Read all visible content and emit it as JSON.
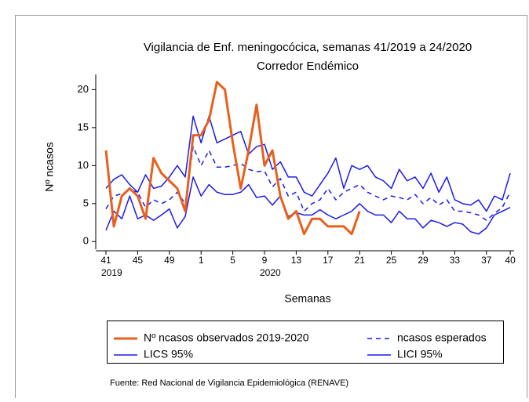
{
  "chart_data": {
    "type": "line",
    "title": "Vigilancia de Enf. meningocócica, semanas 41/2019 a 24/2020",
    "subtitle": "Corredor Endémico",
    "x_label": "Semanas",
    "y_label": "Nº ncasos",
    "source": "Fuente: Red Nacional de Vigilancia Epidemiológica (RENAVE)",
    "categories": [
      "41",
      null,
      null,
      null,
      "45",
      null,
      null,
      null,
      "49",
      null,
      null,
      null,
      "1",
      null,
      null,
      null,
      "5",
      null,
      null,
      null,
      "9",
      null,
      null,
      null,
      "13",
      null,
      null,
      null,
      "17",
      null,
      null,
      null,
      "21",
      null,
      null,
      null,
      "25",
      null,
      null,
      null,
      "29",
      null,
      null,
      null,
      "33",
      null,
      null,
      null,
      "37",
      null,
      null,
      "40"
    ],
    "category_sublabels": [
      "2019",
      null,
      null,
      null,
      null,
      null,
      null,
      null,
      null,
      null,
      null,
      null,
      null,
      null,
      null,
      null,
      null,
      null,
      null,
      null,
      "2020",
      null,
      null,
      null,
      null,
      null,
      null,
      null,
      null,
      null,
      null,
      null,
      null,
      null,
      null,
      null,
      null,
      null,
      null,
      null,
      null,
      null,
      null,
      null,
      null,
      null,
      null,
      null,
      null,
      null,
      null,
      null
    ],
    "ylim": [
      -1,
      22
    ],
    "yticks": [
      0,
      5,
      10,
      15,
      20
    ],
    "series": [
      {
        "name": "Nº ncasos observados 2019-2020",
        "color": "#e8601c",
        "dashed": false,
        "values": [
          12,
          2,
          6,
          7,
          6,
          3,
          11,
          9,
          8,
          7,
          4,
          14,
          14,
          16,
          21,
          20,
          13,
          7,
          12,
          18,
          10,
          12,
          6,
          3,
          4,
          1,
          3,
          3,
          2,
          2,
          2,
          1,
          4,
          null,
          null,
          null,
          null,
          null,
          null,
          null,
          null,
          null,
          null,
          null,
          null,
          null,
          null,
          null,
          null,
          null,
          null,
          null
        ]
      },
      {
        "name": "ncasos esperados",
        "color": "#1a1aee",
        "dashed": true,
        "values": [
          4.3,
          6,
          6.3,
          6.8,
          6.5,
          4.5,
          5.5,
          5,
          5.5,
          6.5,
          5,
          12.5,
          10,
          12,
          9.8,
          9.8,
          10,
          10.3,
          9.5,
          9.2,
          9.3,
          7.2,
          8.3,
          6,
          6.5,
          4,
          5,
          5.5,
          7,
          5.5,
          6.5,
          7,
          7.5,
          6.5,
          6,
          5.5,
          6,
          5.8,
          5.5,
          6.2,
          5,
          5.8,
          4.8,
          5.5,
          4,
          4,
          3.8,
          3.5,
          2.8,
          3.7,
          4.5,
          6.5
        ]
      },
      {
        "name": "LICS 95%",
        "color": "#1a1aee",
        "dashed": false,
        "values": [
          7,
          8.2,
          8.8,
          7.5,
          6.5,
          8.8,
          7,
          7.3,
          8.5,
          10,
          8.5,
          16.5,
          13,
          16.5,
          13,
          13.5,
          14,
          14.5,
          11.5,
          12.5,
          12.8,
          9.5,
          10.5,
          8.5,
          8.5,
          6.5,
          6,
          7.5,
          9,
          11,
          7,
          10,
          9.5,
          10,
          8.5,
          8,
          7,
          9.5,
          8,
          8.5,
          7,
          9,
          6.5,
          8.5,
          5.5,
          5,
          4.8,
          5.5,
          4,
          6,
          5.5,
          9
        ]
      },
      {
        "name": "LICI 95%",
        "color": "#1a1aee",
        "dashed": false,
        "values": [
          1.5,
          4,
          3,
          6,
          3,
          3.5,
          2.8,
          3.5,
          4.3,
          1.8,
          3.3,
          8.5,
          6,
          7.5,
          6.5,
          6.2,
          6.2,
          6.5,
          7.5,
          5.8,
          6,
          4.8,
          6,
          3.3,
          3.8,
          3.5,
          3.5,
          4.2,
          3.5,
          3,
          3.5,
          4,
          5,
          4,
          3.5,
          3.5,
          2.5,
          4,
          3,
          3,
          1.8,
          2.8,
          2.5,
          2,
          2.5,
          2.3,
          1.3,
          1,
          1.8,
          3.5,
          4,
          4.5
        ]
      }
    ]
  }
}
